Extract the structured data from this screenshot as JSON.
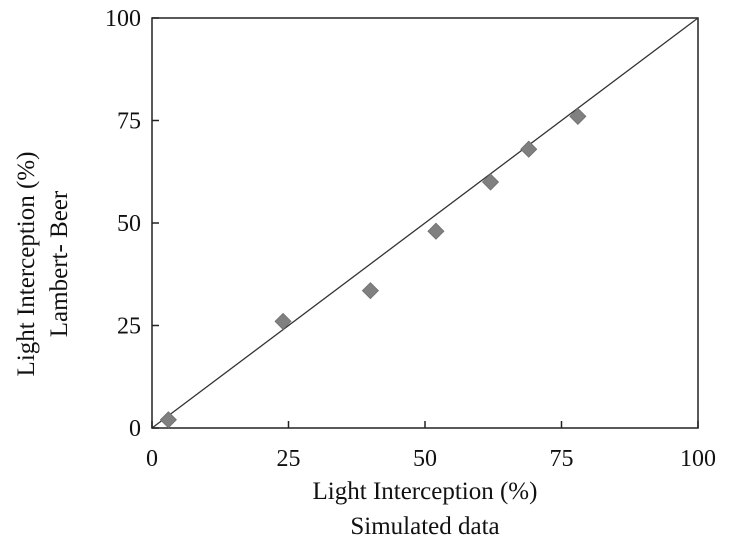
{
  "chart_data": {
    "type": "scatter",
    "xlabel": [
      "Light Interception (%)",
      "Simulated data"
    ],
    "ylabel": [
      "Light Interception (%)",
      "Lambert- Beer"
    ],
    "xlim": [
      0,
      100
    ],
    "ylim": [
      0,
      100
    ],
    "x_ticks": [
      "0",
      "25",
      "50",
      "75",
      "100"
    ],
    "y_ticks": [
      "0",
      "25",
      "50",
      "75",
      "100"
    ],
    "grid": false,
    "reference_line": {
      "type": "1:1",
      "from": [
        0,
        0
      ],
      "to": [
        100,
        100
      ]
    },
    "series": [
      {
        "marker": "diamond",
        "color": "#808080",
        "points": [
          {
            "x": 3,
            "y": 2
          },
          {
            "x": 24,
            "y": 26
          },
          {
            "x": 40,
            "y": 33.5
          },
          {
            "x": 52,
            "y": 48
          },
          {
            "x": 62,
            "y": 60
          },
          {
            "x": 69,
            "y": 68
          },
          {
            "x": 78,
            "y": 76
          }
        ]
      }
    ]
  }
}
